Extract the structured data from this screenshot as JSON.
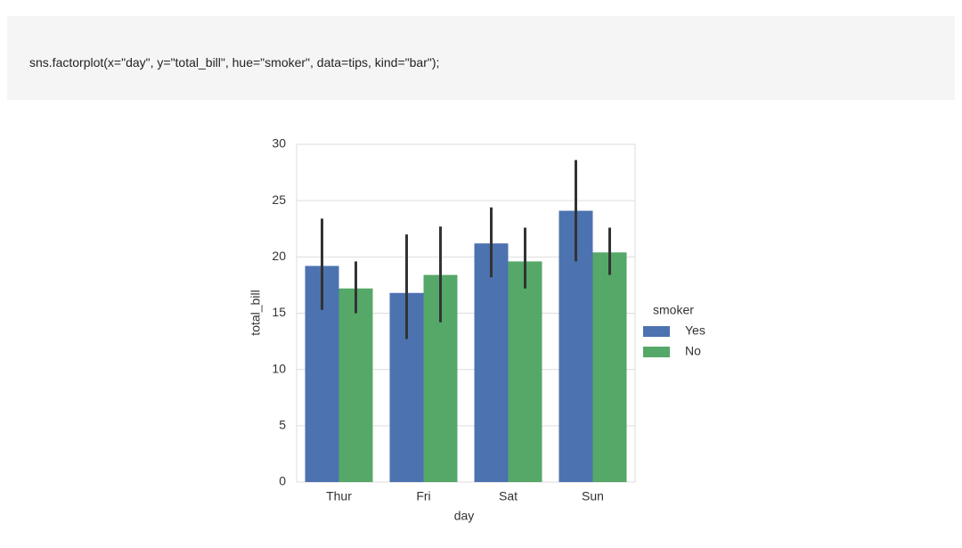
{
  "code": "sns.factorplot(x=\"day\", y=\"total_bill\", hue=\"smoker\", data=tips, kind=\"bar\");",
  "chart_data": {
    "type": "bar",
    "x_label": "day",
    "y_label": "total_bill",
    "legend_title": "smoker",
    "categories": [
      "Thur",
      "Fri",
      "Sat",
      "Sun"
    ],
    "series": [
      {
        "name": "Yes",
        "color": "#4c72b0",
        "values": [
          19.2,
          16.8,
          21.2,
          24.1
        ],
        "ci": [
          [
            15.3,
            23.4
          ],
          [
            12.7,
            22.0
          ],
          [
            18.2,
            24.4
          ],
          [
            19.6,
            28.6
          ]
        ]
      },
      {
        "name": "No",
        "color": "#55a868",
        "values": [
          17.2,
          18.4,
          19.6,
          20.4
        ],
        "ci": [
          [
            15.0,
            19.6
          ],
          [
            14.2,
            22.7
          ],
          [
            17.2,
            22.6
          ],
          [
            18.4,
            22.6
          ]
        ]
      }
    ],
    "ylim": [
      0,
      30
    ],
    "yticks": [
      0,
      5,
      10,
      15,
      20,
      25,
      30
    ],
    "grid": true,
    "legend": "right"
  }
}
